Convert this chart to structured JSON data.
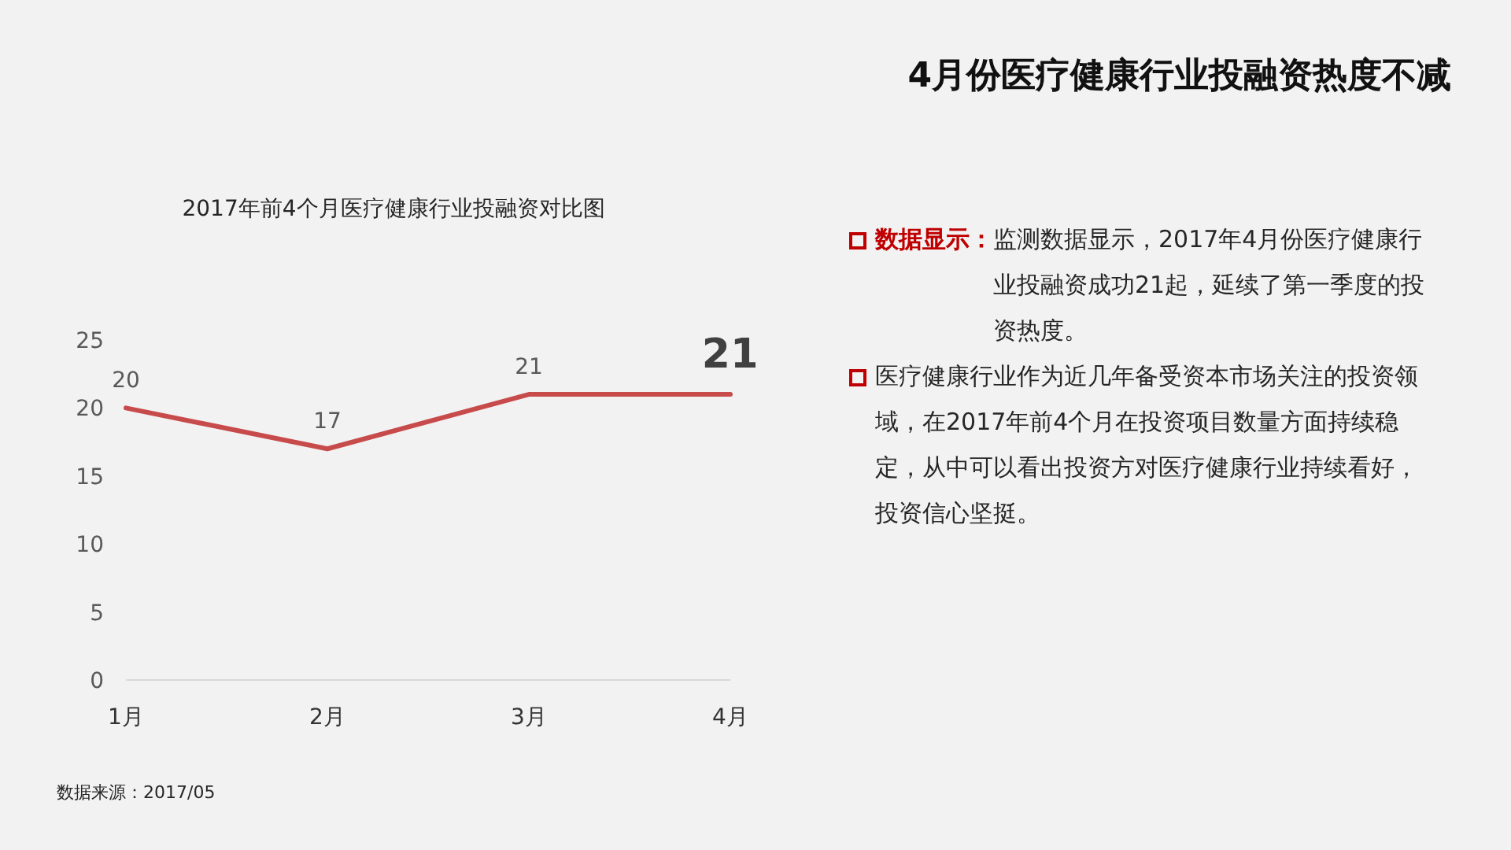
{
  "chart_data": {
    "type": "line",
    "title": "2017年前4个月医疗健康行业投融资对比图",
    "categories": [
      "1月",
      "2月",
      "3月",
      "4月"
    ],
    "series": [
      {
        "color": "#c84b4b",
        "values": [
          20,
          17,
          21,
          21
        ]
      }
    ],
    "ylim": [
      0,
      25
    ],
    "yticks": [
      0,
      5,
      10,
      15,
      20,
      25
    ],
    "data_labels": true,
    "marker": "none",
    "line_style": "solid",
    "annotations": [
      "4月份医疗健康行业投融资热度不减",
      "数据显示：",
      "监测数据显示，2017年4月份医疗健康行业投融资成功21起，延续了第一季度的投资热度。",
      "医疗健康行业作为近几年备受资本市场关注的投资领域，在2017年前4个月在投资项目数量方面持续稳定，从中可以看出投资方对医疗健康行业持续看好，投资信心坚挺。",
      "数据来源：2017/05"
    ]
  }
}
